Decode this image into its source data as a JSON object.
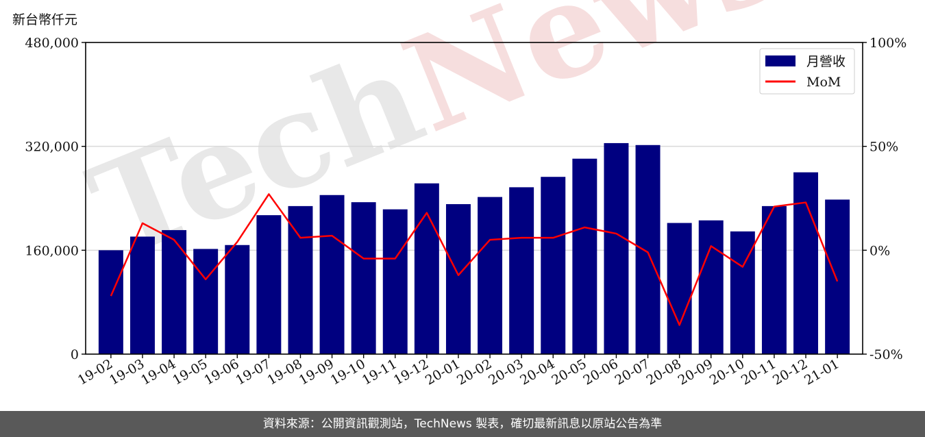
{
  "unit_label": "新台幣仟元",
  "footer_text": "資料來源：公開資訊觀測站，TechNews 製表，確切最新訊息以原站公告為準",
  "colors": {
    "bar": "#000080",
    "line": "#ff0000",
    "grid": "#d9d9d9",
    "watermark": "#e8e8e8",
    "watermark_accent": "#f6dede"
  },
  "chart_data": {
    "type": "bar",
    "categories": [
      "19-02",
      "19-03",
      "19-04",
      "19-05",
      "19-06",
      "19-07",
      "19-08",
      "19-09",
      "19-10",
      "19-11",
      "19-12",
      "20-01",
      "20-02",
      "20-03",
      "20-04",
      "20-05",
      "20-06",
      "20-07",
      "20-08",
      "20-09",
      "20-10",
      "20-11",
      "20-12",
      "21-01"
    ],
    "series": [
      {
        "name": "月營收",
        "axis": "left",
        "type": "bar",
        "values": [
          160000,
          181000,
          191000,
          162000,
          168000,
          214000,
          228000,
          245000,
          234000,
          223000,
          263000,
          231000,
          242000,
          257000,
          273000,
          301000,
          325000,
          322000,
          202000,
          206000,
          189000,
          228000,
          280000,
          238000
        ]
      },
      {
        "name": "MoM",
        "axis": "right",
        "type": "line",
        "values": [
          -22,
          13,
          5,
          -14,
          4,
          27,
          6,
          7,
          -4,
          -4,
          18,
          -12,
          5,
          6,
          6,
          11,
          8,
          -1,
          -36,
          2,
          -8,
          21,
          23,
          -15
        ]
      }
    ],
    "y_left": {
      "range": [
        0,
        480000
      ],
      "ticks": [
        "0",
        "160,000",
        "320,000",
        "480,000"
      ]
    },
    "y_right": {
      "range": [
        -50,
        100
      ],
      "ticks": [
        "-50%",
        "0%",
        "50%",
        "100%"
      ]
    },
    "grid": "horizontal",
    "legend_position": "top-right",
    "watermark": "TechNews"
  }
}
